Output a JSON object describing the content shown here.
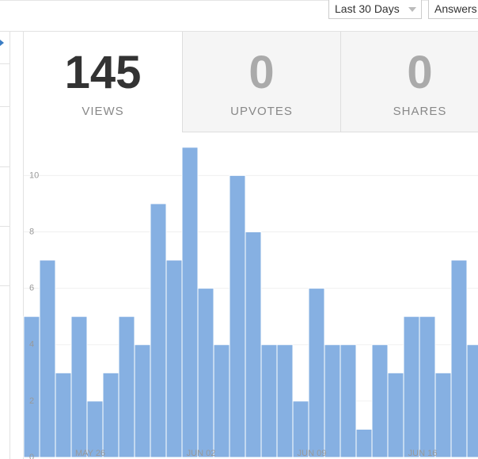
{
  "header": {
    "range_select": "Last 30 Days",
    "type_select": "Answers"
  },
  "stats": [
    {
      "value": 145,
      "label": "VIEWS"
    },
    {
      "value": 0,
      "label": "UPVOTES"
    },
    {
      "value": 0,
      "label": "SHARES"
    }
  ],
  "chart_data": {
    "type": "bar",
    "categories": [
      null,
      null,
      null,
      null,
      "MAY 26",
      null,
      null,
      null,
      null,
      null,
      null,
      "JUN 02",
      null,
      null,
      null,
      null,
      null,
      null,
      "JUN 09",
      null,
      null,
      null,
      null,
      null,
      null,
      "JUN 16",
      null,
      null,
      null
    ],
    "values": [
      5,
      7,
      3,
      5,
      2,
      3,
      5,
      4,
      9,
      7,
      11,
      6,
      4,
      10,
      8,
      4,
      4,
      2,
      6,
      4,
      4,
      1,
      4,
      3,
      5,
      5,
      3,
      7,
      4
    ],
    "color": "#86b0e2",
    "ylim": [
      0,
      11.5
    ],
    "yticks": [
      0,
      2,
      4,
      6,
      8,
      10
    ],
    "grid": true
  }
}
